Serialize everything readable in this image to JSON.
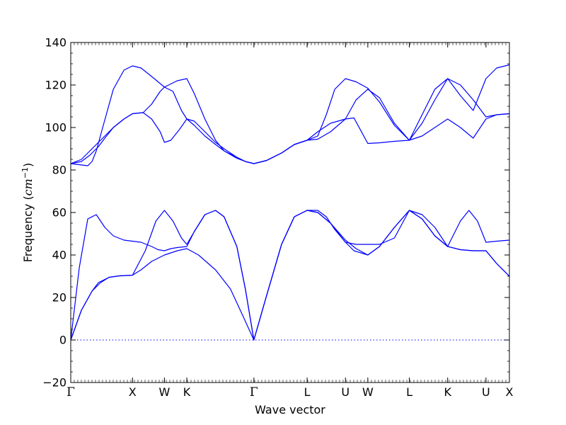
{
  "chart_data": {
    "type": "line",
    "title": "",
    "xlabel": "Wave vector",
    "ylabel": {
      "prefix": "Frequency (",
      "math": "cm",
      "sup": "−1",
      "suffix": ")"
    },
    "ylim": [
      -20,
      140
    ],
    "yticks": [
      -20,
      0,
      20,
      40,
      60,
      80,
      100,
      120,
      140
    ],
    "xlim": [
      0,
      20.6
    ],
    "xticks": [
      {
        "x": 0,
        "label": "Γ"
      },
      {
        "x": 2.9,
        "label": "X"
      },
      {
        "x": 4.4,
        "label": "W"
      },
      {
        "x": 5.45,
        "label": "K"
      },
      {
        "x": 8.6,
        "label": "Γ"
      },
      {
        "x": 11.1,
        "label": "L"
      },
      {
        "x": 12.9,
        "label": "U"
      },
      {
        "x": 13.95,
        "label": "W"
      },
      {
        "x": 15.9,
        "label": "L"
      },
      {
        "x": 17.7,
        "label": "K"
      },
      {
        "x": 19.5,
        "label": "U"
      },
      {
        "x": 20.6,
        "label": "X"
      }
    ],
    "zero_line": 0,
    "line_color": "#0000ff",
    "zero_line_color": "#0000ff",
    "series": [
      {
        "x": [
          0,
          0.5,
          1.0,
          1.4,
          1.8,
          2.3,
          2.9,
          3.3,
          3.8,
          4.4,
          5.0,
          5.45,
          6.0,
          6.8,
          7.5,
          8.1,
          8.6,
          9.2,
          9.9,
          10.5,
          11.1,
          11.6,
          12.2,
          12.9,
          13.3,
          13.95,
          14.5,
          15.2,
          15.9,
          16.5,
          17.1,
          17.7,
          18.3,
          18.9,
          19.5,
          20.0,
          20.6
        ],
        "values": [
          0,
          14,
          23,
          27,
          29.5,
          30.2,
          30.5,
          33,
          37,
          40,
          42,
          43,
          40,
          33,
          24,
          11,
          0,
          21,
          45,
          58,
          61,
          60,
          55,
          46,
          42,
          40,
          44,
          53,
          61,
          57,
          49,
          44,
          42.5,
          42,
          42,
          36,
          30
        ]
      },
      {
        "x": [
          0,
          0.5,
          1.0,
          1.3,
          1.8,
          2.3,
          2.9,
          3.5,
          4.0,
          4.4,
          4.8,
          5.2,
          5.45,
          5.8,
          6.3,
          6.8,
          7.2,
          7.8,
          8.2,
          8.6,
          9.2,
          9.9,
          10.5,
          11.1,
          11.6,
          12.2,
          12.9,
          13.4,
          13.95,
          14.5,
          15.2,
          15.9,
          16.5,
          17.1,
          17.7,
          18.3,
          18.9,
          19.5,
          20.0,
          20.6
        ],
        "values": [
          0,
          14,
          23,
          27,
          29.5,
          30.2,
          30.5,
          42,
          56,
          61,
          56,
          48,
          45,
          51,
          59,
          61,
          58,
          44,
          24,
          0,
          21,
          45,
          58,
          61,
          60,
          55,
          47,
          43,
          40,
          44,
          53,
          61,
          57,
          49,
          44,
          42.5,
          42,
          42,
          36,
          30
        ]
      },
      {
        "x": [
          0,
          0.4,
          0.8,
          1.2,
          1.6,
          2.0,
          2.5,
          2.9,
          3.3,
          3.8,
          4.1,
          4.4,
          4.7,
          5.0,
          5.45,
          5.8,
          6.3,
          6.8,
          7.2,
          7.8,
          8.2,
          8.6,
          9.2,
          9.9,
          10.5,
          11.1,
          11.6,
          12.0,
          12.4,
          12.9,
          13.4,
          13.95,
          14.5,
          15.2,
          15.9,
          16.5,
          17.1,
          17.7,
          18.3,
          18.7,
          19.1,
          19.5,
          20.0,
          20.6
        ],
        "values": [
          0,
          34,
          57,
          59,
          53,
          49,
          47,
          46.5,
          46,
          44,
          42.5,
          42,
          43,
          43.5,
          44,
          51,
          59,
          61,
          58,
          44,
          24,
          0,
          21,
          45,
          58,
          61,
          61,
          58,
          52,
          46,
          45,
          45,
          45,
          48,
          61,
          59,
          53,
          44,
          56,
          61,
          56,
          46,
          46.5,
          47
        ]
      },
      {
        "x": [
          0,
          0.5,
          0.9,
          1.3,
          1.6,
          2.0,
          2.5,
          2.9,
          3.4,
          3.8,
          4.2,
          4.4,
          4.7,
          5.1,
          5.45,
          5.8,
          6.3,
          6.8,
          7.2,
          7.8,
          8.2,
          8.6,
          9.2,
          9.9,
          10.5,
          11.1,
          11.6,
          12.2,
          12.9,
          13.3,
          13.95,
          14.5,
          15.2,
          15.9,
          16.5,
          17.1,
          17.7,
          18.3,
          18.9,
          19.5,
          20.0,
          20.6
        ],
        "values": [
          83,
          85,
          89,
          93,
          96,
          100,
          104,
          106.5,
          107,
          104,
          98,
          93,
          94,
          99,
          104,
          103,
          98,
          93,
          90,
          86,
          84,
          83,
          84.5,
          88,
          92,
          94,
          94.5,
          98,
          104,
          104.5,
          92.5,
          92.8,
          93.5,
          94,
          96,
          100,
          104,
          100,
          95,
          104,
          106,
          106.5
        ]
      },
      {
        "x": [
          0,
          0.5,
          0.9,
          1.3,
          1.6,
          2.0,
          2.5,
          2.9,
          3.4,
          3.8,
          4.2,
          4.4,
          4.8,
          5.2,
          5.45,
          5.8,
          6.3,
          6.8,
          7.2,
          7.8,
          8.2,
          8.6,
          9.2,
          9.9,
          10.5,
          11.1,
          11.6,
          12.2,
          12.9,
          13.4,
          13.95,
          14.5,
          15.2,
          15.9,
          16.5,
          17.1,
          17.7,
          18.3,
          18.9,
          19.5,
          20.0,
          20.6
        ],
        "values": [
          83,
          84,
          87,
          91,
          95,
          100,
          104,
          106.5,
          107,
          111,
          117,
          119,
          117,
          108,
          104,
          101,
          96,
          92,
          89,
          86,
          84,
          83,
          84.5,
          88,
          92,
          94,
          98,
          102,
          104,
          113,
          118,
          114,
          102,
          94,
          102,
          113,
          123,
          120,
          113,
          105,
          106,
          106.5
        ]
      },
      {
        "x": [
          0,
          0.4,
          0.8,
          1.0,
          1.2,
          1.5,
          2.0,
          2.5,
          2.9,
          3.3,
          3.8,
          4.4,
          5.0,
          5.45,
          5.8,
          6.3,
          6.8,
          7.2,
          7.8,
          8.2,
          8.6,
          9.2,
          9.9,
          10.5,
          11.1,
          11.6,
          12.0,
          12.4,
          12.9,
          13.4,
          13.95,
          14.5,
          15.2,
          15.9,
          16.5,
          17.1,
          17.7,
          18.3,
          18.9,
          19.5,
          20.0,
          20.6
        ],
        "values": [
          83,
          82.5,
          82,
          84,
          89,
          100,
          118,
          127,
          129,
          128,
          124,
          119,
          122,
          123,
          116,
          104,
          94,
          89,
          85.5,
          84,
          83,
          84.5,
          88,
          92,
          94,
          96,
          106,
          118,
          123,
          121.5,
          118.5,
          112,
          101,
          94,
          106,
          118,
          123,
          115,
          108,
          123,
          128,
          129.5
        ]
      }
    ]
  }
}
